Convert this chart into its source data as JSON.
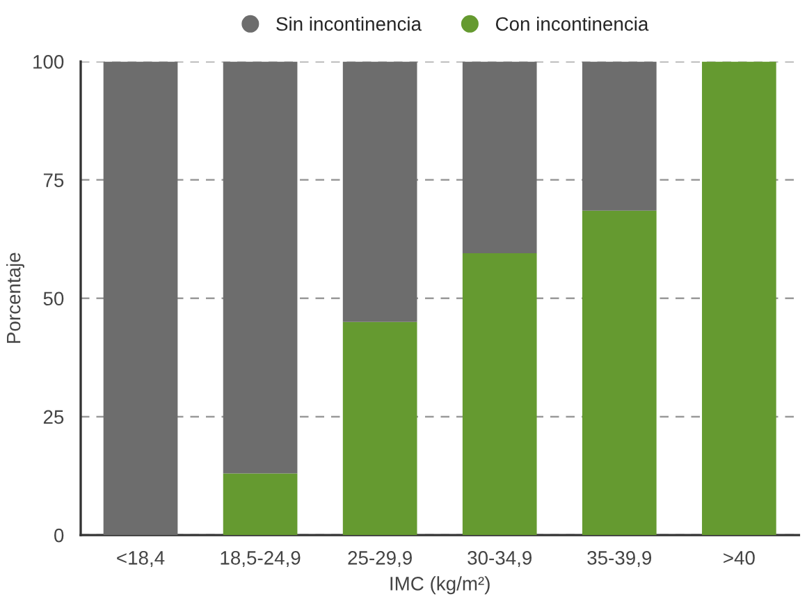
{
  "chart_data": {
    "type": "bar",
    "stacked": true,
    "xlabel": "IMC (kg/m²)",
    "ylabel": "Porcentaje",
    "categories": [
      "<18,4",
      "18,5-24,9",
      "25-29,9",
      "30-34,9",
      "35-39,9",
      ">40"
    ],
    "series": [
      {
        "name": "Con incontinencia",
        "color": "#659a30",
        "values": [
          0,
          13,
          45,
          59.5,
          68.5,
          100
        ]
      },
      {
        "name": "Sin incontinencia",
        "color": "#6d6d6d",
        "values": [
          100,
          87,
          55,
          40.5,
          31.5,
          0
        ]
      }
    ],
    "ylim": [
      0,
      100
    ],
    "yticks": [
      0,
      25,
      50,
      75,
      100
    ],
    "grid": "y",
    "legend": "top"
  }
}
